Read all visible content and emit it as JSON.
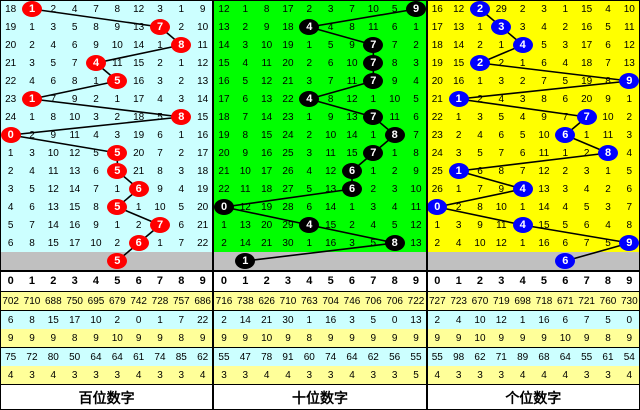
{
  "chart_data": {
    "type": "table",
    "digit_headers": [
      "0",
      "1",
      "2",
      "3",
      "4",
      "5",
      "6",
      "7",
      "8",
      "9"
    ],
    "panels": [
      {
        "title": "百位数字",
        "bg": "#ccffff",
        "ball_color": "#ff0000",
        "rows": [
          [
            18,
            1,
            2,
            4,
            7,
            8,
            12,
            3,
            1,
            9
          ],
          [
            19,
            1,
            3,
            5,
            8,
            9,
            13,
            7,
            2,
            10
          ],
          [
            20,
            2,
            4,
            6,
            9,
            10,
            14,
            1,
            8,
            11
          ],
          [
            21,
            3,
            5,
            7,
            4,
            11,
            15,
            2,
            1,
            12
          ],
          [
            22,
            4,
            6,
            8,
            1,
            5,
            16,
            3,
            2,
            13
          ],
          [
            23,
            1,
            7,
            9,
            2,
            1,
            17,
            4,
            3,
            14
          ],
          [
            24,
            1,
            8,
            10,
            3,
            2,
            18,
            5,
            8,
            15
          ],
          [
            0,
            2,
            9,
            11,
            4,
            3,
            19,
            6,
            1,
            16
          ],
          [
            1,
            3,
            10,
            12,
            5,
            5,
            20,
            7,
            2,
            17
          ],
          [
            2,
            4,
            11,
            13,
            6,
            5,
            21,
            8,
            3,
            18
          ],
          [
            3,
            5,
            12,
            14,
            7,
            1,
            6,
            9,
            4,
            19
          ],
          [
            4,
            6,
            13,
            15,
            8,
            5,
            1,
            10,
            5,
            20
          ],
          [
            5,
            7,
            14,
            16,
            9,
            1,
            2,
            7,
            6,
            21
          ],
          [
            6,
            8,
            15,
            17,
            10,
            2,
            6,
            1,
            7,
            22
          ]
        ],
        "hits": [
          1,
          7,
          8,
          4,
          5,
          1,
          8,
          0,
          5,
          5,
          6,
          5,
          7,
          6
        ],
        "forecast": 5,
        "stats": [
          [
            702,
            710,
            688,
            750,
            695,
            679,
            742,
            728,
            757,
            686
          ],
          [
            6,
            8,
            15,
            17,
            10,
            2,
            0,
            1,
            7,
            22
          ],
          [
            9,
            9,
            9,
            8,
            9,
            10,
            9,
            9,
            8,
            9
          ],
          [
            75,
            72,
            80,
            50,
            64,
            64,
            61,
            74,
            85,
            62
          ],
          [
            4,
            3,
            4,
            3,
            3,
            3,
            4,
            3,
            3,
            4
          ]
        ]
      },
      {
        "title": "十位数字",
        "bg": "#00ff00",
        "ball_color": "#000000",
        "rows": [
          [
            12,
            1,
            8,
            17,
            2,
            3,
            7,
            10,
            5,
            9
          ],
          [
            13,
            2,
            9,
            18,
            4,
            4,
            8,
            11,
            6,
            1
          ],
          [
            14,
            3,
            10,
            19,
            1,
            5,
            9,
            7,
            7,
            2
          ],
          [
            15,
            4,
            11,
            20,
            2,
            6,
            10,
            7,
            8,
            3
          ],
          [
            16,
            5,
            12,
            21,
            3,
            7,
            11,
            7,
            9,
            4
          ],
          [
            17,
            6,
            13,
            22,
            4,
            8,
            12,
            1,
            10,
            5
          ],
          [
            18,
            7,
            14,
            23,
            1,
            9,
            13,
            7,
            11,
            6
          ],
          [
            19,
            8,
            15,
            24,
            2,
            10,
            14,
            1,
            8,
            7
          ],
          [
            20,
            9,
            16,
            25,
            3,
            11,
            15,
            7,
            1,
            8
          ],
          [
            21,
            10,
            17,
            26,
            4,
            12,
            6,
            1,
            2,
            9
          ],
          [
            22,
            11,
            18,
            27,
            5,
            13,
            6,
            2,
            3,
            10
          ],
          [
            0,
            12,
            19,
            28,
            6,
            14,
            1,
            3,
            4,
            11
          ],
          [
            1,
            13,
            20,
            29,
            4,
            15,
            2,
            4,
            5,
            12
          ],
          [
            2,
            14,
            21,
            30,
            1,
            16,
            3,
            5,
            8,
            13
          ]
        ],
        "hits": [
          9,
          4,
          7,
          7,
          7,
          4,
          7,
          8,
          7,
          6,
          6,
          0,
          4,
          8
        ],
        "forecast": 1,
        "stats": [
          [
            716,
            738,
            626,
            710,
            763,
            704,
            746,
            706,
            706,
            722
          ],
          [
            2,
            14,
            21,
            30,
            1,
            16,
            3,
            5,
            0,
            13
          ],
          [
            9,
            9,
            10,
            9,
            8,
            9,
            9,
            9,
            9,
            9
          ],
          [
            55,
            47,
            78,
            91,
            60,
            74,
            64,
            62,
            56,
            55
          ],
          [
            3,
            3,
            4,
            4,
            3,
            3,
            4,
            3,
            3,
            5
          ]
        ]
      },
      {
        "title": "个位数字",
        "bg": "#ffff00",
        "ball_color": "#0000ff",
        "rows": [
          [
            16,
            12,
            2,
            29,
            2,
            3,
            1,
            15,
            4,
            10
          ],
          [
            17,
            13,
            1,
            3,
            3,
            4,
            2,
            16,
            5,
            11
          ],
          [
            18,
            14,
            2,
            1,
            4,
            5,
            3,
            17,
            6,
            12
          ],
          [
            19,
            15,
            2,
            2,
            1,
            6,
            4,
            18,
            7,
            13
          ],
          [
            20,
            16,
            1,
            3,
            2,
            7,
            5,
            19,
            8,
            9
          ],
          [
            21,
            1,
            2,
            4,
            3,
            8,
            6,
            20,
            9,
            1
          ],
          [
            22,
            1,
            3,
            5,
            4,
            9,
            7,
            7,
            10,
            2
          ],
          [
            23,
            2,
            4,
            6,
            5,
            10,
            6,
            1,
            11,
            3
          ],
          [
            24,
            3,
            5,
            7,
            6,
            11,
            1,
            2,
            8,
            4
          ],
          [
            25,
            1,
            6,
            8,
            7,
            12,
            2,
            3,
            1,
            5
          ],
          [
            26,
            1,
            7,
            9,
            4,
            13,
            3,
            4,
            2,
            6
          ],
          [
            0,
            2,
            8,
            10,
            1,
            14,
            4,
            5,
            3,
            7
          ],
          [
            1,
            3,
            9,
            11,
            4,
            15,
            5,
            6,
            4,
            8
          ],
          [
            2,
            4,
            10,
            12,
            1,
            16,
            6,
            7,
            5,
            9
          ]
        ],
        "hits": [
          2,
          3,
          4,
          2,
          9,
          1,
          7,
          6,
          8,
          1,
          4,
          0,
          4,
          9
        ],
        "forecast": 6,
        "stats": [
          [
            727,
            723,
            670,
            719,
            698,
            718,
            671,
            721,
            760,
            730
          ],
          [
            2,
            4,
            10,
            12,
            1,
            16,
            6,
            7,
            5,
            0
          ],
          [
            9,
            9,
            10,
            9,
            9,
            9,
            10,
            9,
            8,
            9
          ],
          [
            55,
            98,
            62,
            71,
            89,
            68,
            64,
            55,
            61,
            54
          ],
          [
            4,
            3,
            3,
            3,
            4,
            4,
            4,
            3,
            3,
            4
          ]
        ]
      }
    ],
    "stat_row_colors": [
      "#ffff99",
      "#ccffff",
      "#ffff99",
      "#ccffff",
      "#ffff99"
    ],
    "forecast_row_color": "#c0c0c0"
  }
}
